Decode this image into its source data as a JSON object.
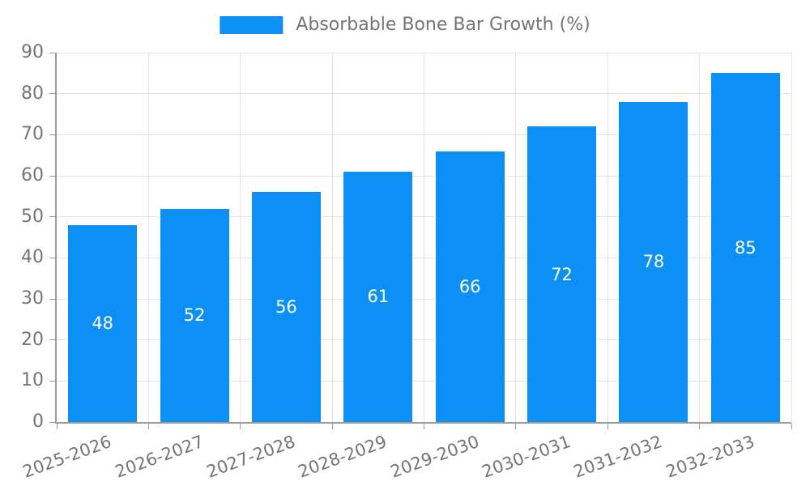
{
  "chart_data": {
    "type": "bar",
    "title": "",
    "xlabel": "",
    "ylabel": "",
    "legend": [
      "Absorbable Bone Bar Growth (%)"
    ],
    "legend_position": "top-center",
    "categories": [
      "2025-2026",
      "2026-2027",
      "2027-2028",
      "2028-2029",
      "2029-2030",
      "2030-2031",
      "2031-2032",
      "2032-2033"
    ],
    "values": [
      48,
      52,
      56,
      61,
      66,
      72,
      78,
      85
    ],
    "ylim": [
      0,
      90
    ],
    "yticks": [
      0,
      10,
      20,
      30,
      40,
      50,
      60,
      70,
      80,
      90
    ],
    "grid": true,
    "value_labels": "inside-center",
    "x_label_rotation_deg": -20,
    "colors": {
      "bar": "#0d90f5",
      "grid": "#e5e5e5",
      "axis": "#9a9a9a",
      "text": "#757575",
      "value_label": "#ffffff"
    }
  }
}
